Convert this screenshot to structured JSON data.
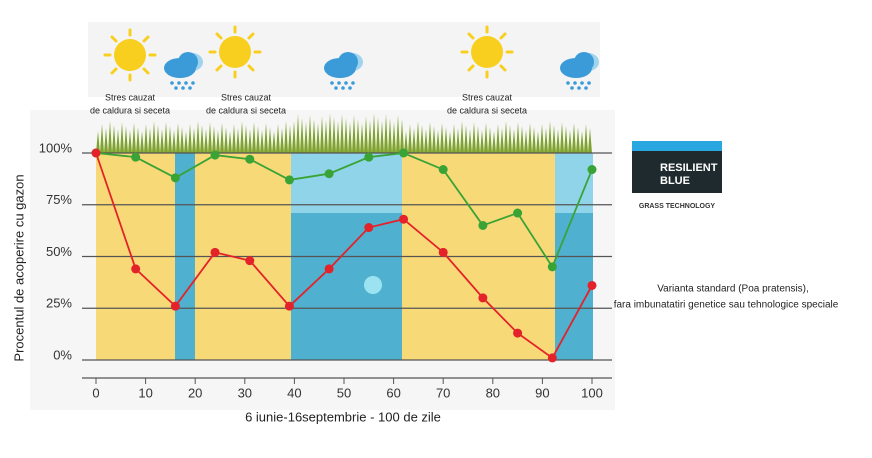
{
  "chart_data": {
    "type": "line",
    "xlabel": "6 iunie-16septembrie - 100 de zile",
    "ylabel": "Procentul de acoperire cu gazon",
    "x": [
      0,
      8,
      16,
      24,
      31,
      39,
      47,
      55,
      62,
      70,
      78,
      85,
      92,
      100
    ],
    "series": [
      {
        "color": "#3aa336",
        "values": [
          100,
          98,
          88,
          99,
          97,
          87,
          90,
          98,
          100,
          92,
          65,
          71,
          45,
          92
        ]
      },
      {
        "color": "#e3222a",
        "values": [
          100,
          44,
          26,
          52,
          48,
          26,
          44,
          64,
          68,
          52,
          30,
          13,
          1,
          36
        ]
      }
    ],
    "xlim": [
      0,
      100
    ],
    "ylim": [
      0,
      100
    ],
    "xticks": [
      0,
      10,
      20,
      30,
      40,
      50,
      60,
      70,
      80,
      90,
      100
    ],
    "yticks": [
      {
        "value": 0,
        "label": "0%"
      },
      {
        "value": 25,
        "label": "25%"
      },
      {
        "value": 50,
        "label": "50%"
      },
      {
        "value": 75,
        "label": "75%"
      },
      {
        "value": 100,
        "label": "100%"
      }
    ],
    "grid": true,
    "annotations": [
      [
        "Stres cauzat",
        "de caldura si seceta"
      ],
      [
        "Stres cauzat",
        "de caldura si seceta"
      ],
      [
        "Stres cauzat",
        "de caldura si seceta"
      ]
    ],
    "note": [
      "Varianta standard (Poa pratensis),",
      "fara imbunatatiri genetice sau tehnologice speciale"
    ]
  },
  "logo": {
    "line1": "RESILIENT",
    "line2": "BLUE",
    "tagline": "GRASS TECHNOLOGY"
  }
}
